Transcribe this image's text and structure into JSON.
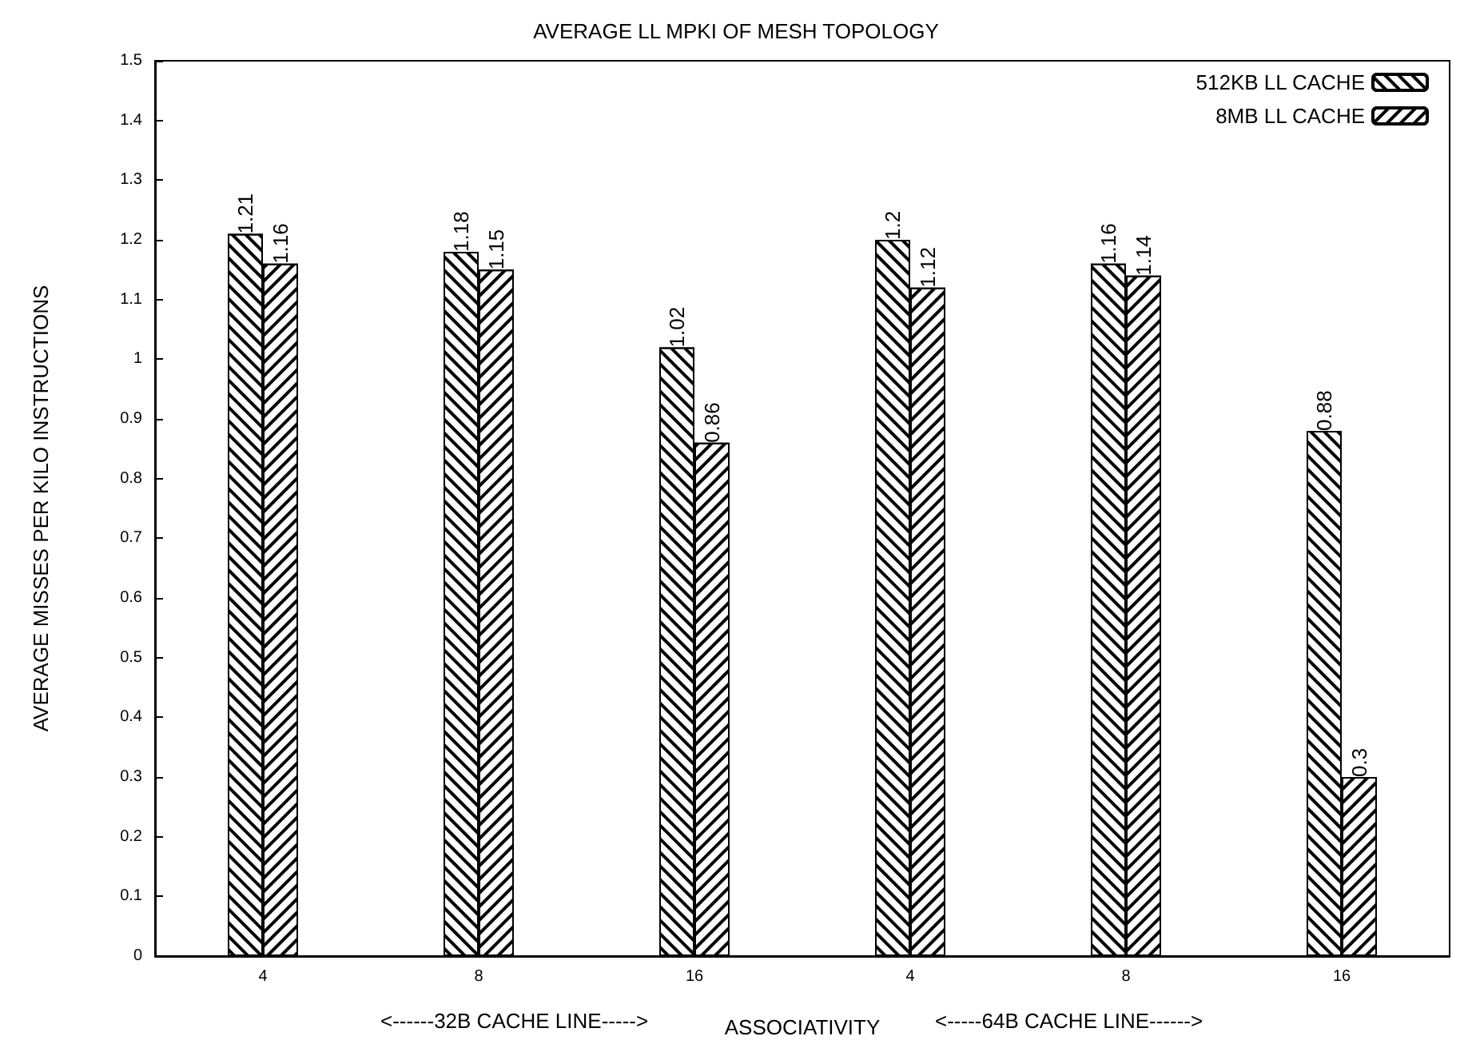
{
  "chart_data": {
    "type": "bar",
    "title": "AVERAGE LL MPKI OF MESH TOPOLOGY",
    "categories": [
      "4",
      "8",
      "16",
      "4",
      "8",
      "16"
    ],
    "series": [
      {
        "name": "512KB LL CACHE",
        "color": "#ffffff",
        "values": [
          1.21,
          1.18,
          1.02,
          1.2,
          1.16,
          0.88
        ]
      },
      {
        "name": "8MB LL CACHE",
        "color": "#ffffff",
        "values": [
          1.16,
          1.15,
          0.86,
          1.12,
          1.14,
          0.3
        ]
      }
    ],
    "xlabel": "ASSOCIATIVITY",
    "ylabel": "AVERAGE MISSES PER KILO INSTRUCTIONS",
    "annotations": [
      "<------32B CACHE LINE----->",
      "<-----64B CACHE LINE------>"
    ],
    "ylim": [
      0,
      1.5
    ],
    "yticks": [
      0,
      0.1,
      0.2,
      0.3,
      0.4,
      0.5,
      0.6,
      0.7,
      0.8,
      0.9,
      1,
      1.1,
      1.2,
      1.3,
      1.4,
      1.5
    ],
    "data_labels": true,
    "legend": "top right",
    "grid": false
  }
}
